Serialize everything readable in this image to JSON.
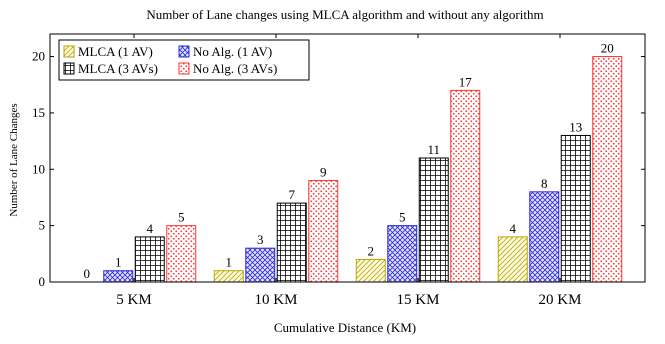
{
  "chart_data": {
    "type": "bar",
    "title": "Number of Lane changes using MLCA algorithm and without any algorithm",
    "xlabel": "Cumulative Distance (KM)",
    "ylabel": "Number of Lane Changes",
    "categories": [
      "5 KM",
      "10 KM",
      "15 KM",
      "20 KM"
    ],
    "ylim": [
      0,
      22
    ],
    "yticks": [
      0,
      5,
      10,
      15,
      20
    ],
    "grid": false,
    "legend_position": "top-left",
    "series": [
      {
        "name": "MLCA (1 AV)",
        "values": [
          0,
          1,
          2,
          4
        ],
        "color": "#b5a600",
        "fill": "#fffbe0",
        "pattern": "north-east-lines"
      },
      {
        "name": "No Alg. (1 AV)",
        "values": [
          1,
          3,
          5,
          8
        ],
        "color": "#2b2bd6",
        "fill": "#e4e4ff",
        "pattern": "crosshatch"
      },
      {
        "name": "MLCA (3 AVs)",
        "values": [
          4,
          7,
          11,
          13
        ],
        "color": "#000000",
        "fill": "#ffffff",
        "pattern": "grid"
      },
      {
        "name": "No Alg. (3 AVs)",
        "values": [
          5,
          9,
          17,
          20
        ],
        "color": "#ff3333",
        "fill": "#ffffff",
        "pattern": "dots"
      }
    ]
  }
}
